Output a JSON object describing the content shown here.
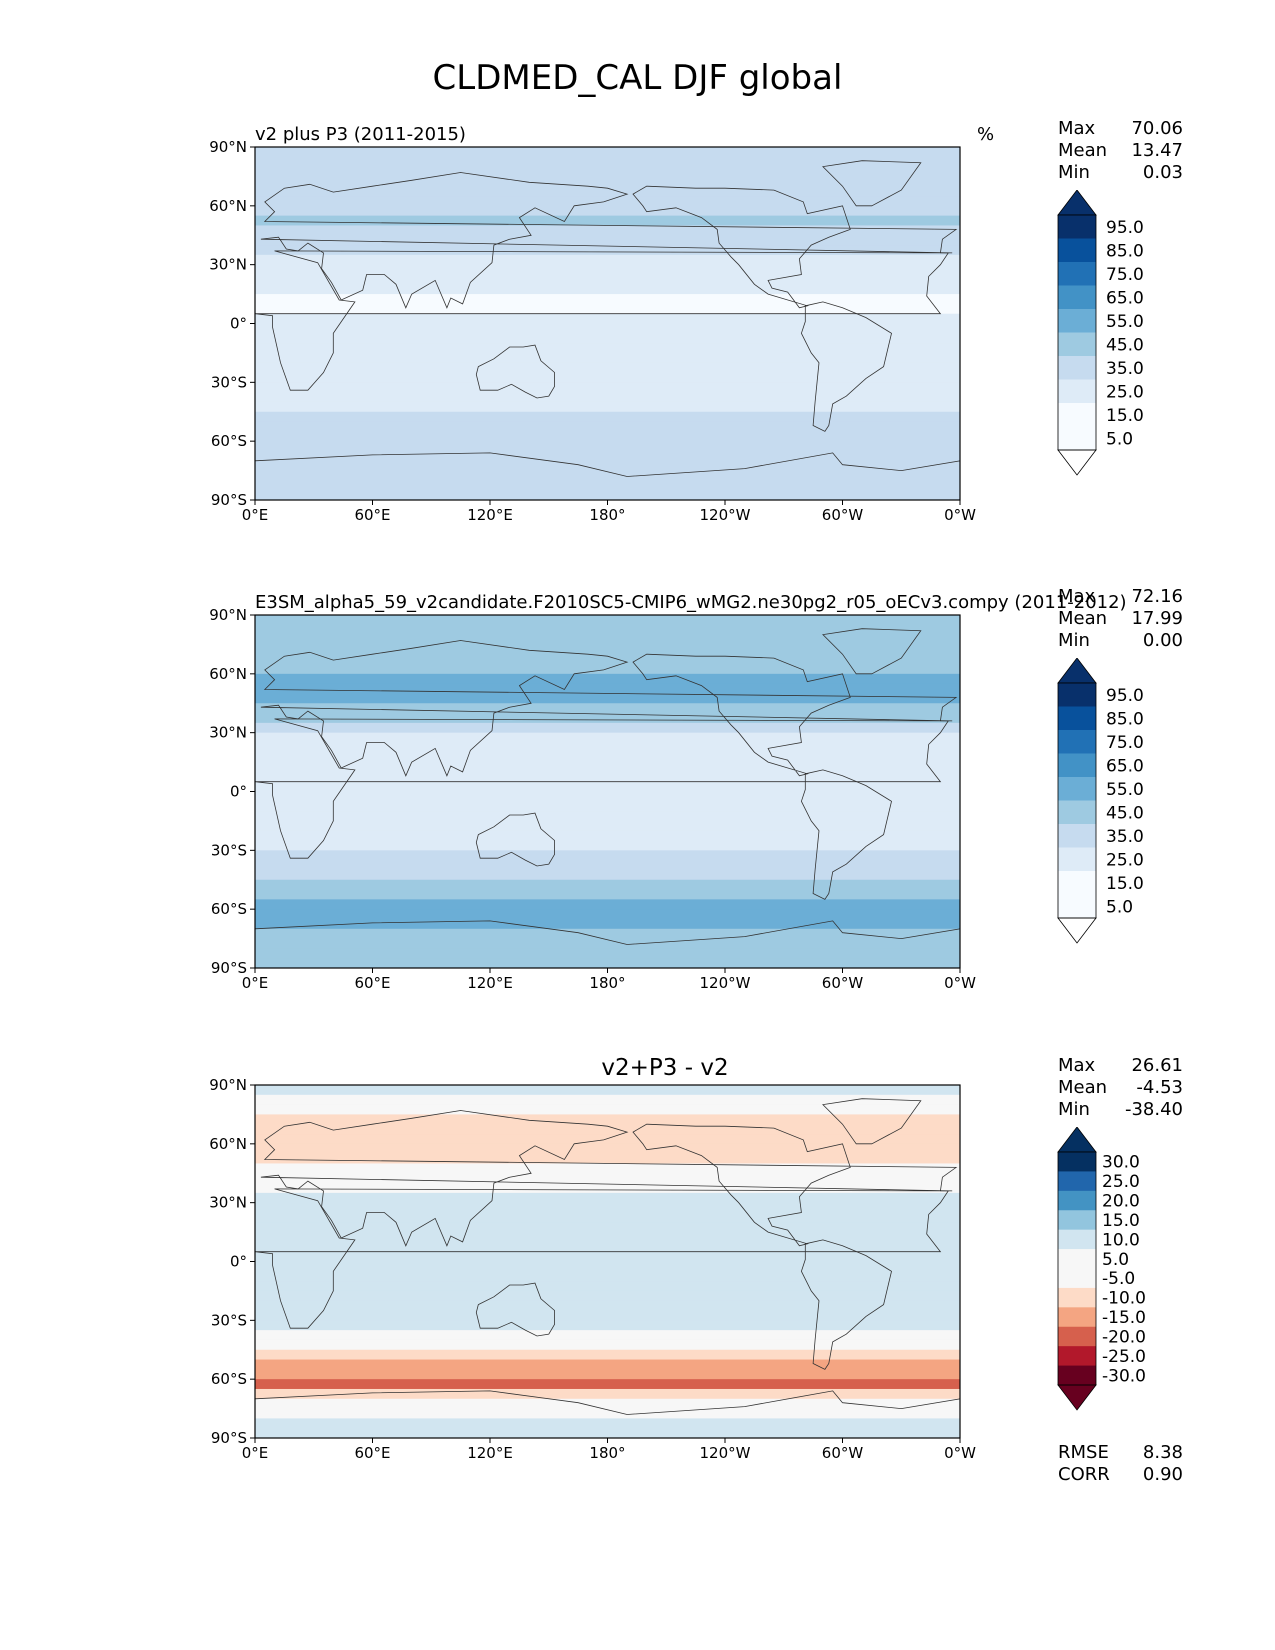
{
  "suptitle": "CLDMED_CAL DJF global",
  "colors": {
    "seq_blues": [
      "#f7fbff",
      "#deebf7",
      "#c6dbef",
      "#9ecae1",
      "#6baed6",
      "#4292c6",
      "#2171b5",
      "#08519c",
      "#08306b"
    ],
    "diverging": [
      "#67001f",
      "#b2182b",
      "#d6604d",
      "#f4a582",
      "#fddbc7",
      "#f7f7f7",
      "#d1e5f0",
      "#92c5de",
      "#4393c3",
      "#2166ac",
      "#053061"
    ],
    "coastline": "#333333"
  },
  "chart_data": [
    {
      "type": "heatmap",
      "panel": "test",
      "title_left": "v2 plus P3 (2011-2015)",
      "title_right": "%",
      "stats": [
        {
          "label": "Max",
          "value": "70.06"
        },
        {
          "label": "Mean",
          "value": "13.47"
        },
        {
          "label": "Min",
          "value": "0.03"
        }
      ],
      "colorbar": {
        "ticks": [
          "95.0",
          "85.0",
          "75.0",
          "65.0",
          "55.0",
          "45.0",
          "35.0",
          "25.0",
          "15.0",
          "5.0"
        ],
        "levels": [
          0,
          5,
          15,
          25,
          35,
          45,
          55,
          65,
          75,
          85,
          95,
          100
        ],
        "palette": "seq_blues"
      },
      "xlabels": [
        "0°E",
        "60°E",
        "120°E",
        "180°",
        "120°W",
        "60°W",
        "0°W"
      ],
      "ylabels": [
        "90°N",
        "60°N",
        "30°N",
        "0°",
        "30°S",
        "60°S",
        "90°S"
      ],
      "xlim": [
        0,
        360
      ],
      "ylim": [
        -90,
        90
      ]
    },
    {
      "type": "heatmap",
      "panel": "reference",
      "title_left": "E3SM_alpha5_59_v2candidate.F2010SC5-CMIP6_wMG2.ne30pg2_r05_oECv3.compy (2011-2012)",
      "title_right": "%",
      "stats": [
        {
          "label": "Max",
          "value": "72.16"
        },
        {
          "label": "Mean",
          "value": "17.99"
        },
        {
          "label": "Min",
          "value": "0.00"
        }
      ],
      "colorbar": {
        "ticks": [
          "95.0",
          "85.0",
          "75.0",
          "65.0",
          "55.0",
          "45.0",
          "35.0",
          "25.0",
          "15.0",
          "5.0"
        ],
        "levels": [
          0,
          5,
          15,
          25,
          35,
          45,
          55,
          65,
          75,
          85,
          95,
          100
        ],
        "palette": "seq_blues"
      },
      "xlabels": [
        "0°E",
        "60°E",
        "120°E",
        "180°",
        "120°W",
        "60°W",
        "0°W"
      ],
      "ylabels": [
        "90°N",
        "60°N",
        "30°N",
        "0°",
        "30°S",
        "60°S",
        "90°S"
      ],
      "xlim": [
        0,
        360
      ],
      "ylim": [
        -90,
        90
      ]
    },
    {
      "type": "heatmap",
      "panel": "difference",
      "title_center": "v2+P3 - v2",
      "stats": [
        {
          "label": "Max",
          "value": "26.61"
        },
        {
          "label": "Mean",
          "value": "-4.53"
        },
        {
          "label": "Min",
          "value": "-38.40"
        }
      ],
      "extra_stats": [
        {
          "label": "RMSE",
          "value": "8.38"
        },
        {
          "label": "CORR",
          "value": "0.90"
        }
      ],
      "colorbar": {
        "ticks": [
          "30.0",
          "25.0",
          "20.0",
          "15.0",
          "10.0",
          "5.0",
          "-5.0",
          "-10.0",
          "-15.0",
          "-20.0",
          "-25.0",
          "-30.0"
        ],
        "palette": "diverging"
      },
      "xlabels": [
        "0°E",
        "60°E",
        "120°E",
        "180°",
        "120°W",
        "60°W",
        "0°W"
      ],
      "ylabels": [
        "90°N",
        "60°N",
        "30°N",
        "0°",
        "30°S",
        "60°S",
        "90°S"
      ],
      "xlim": [
        0,
        360
      ],
      "ylim": [
        -90,
        90
      ]
    }
  ]
}
